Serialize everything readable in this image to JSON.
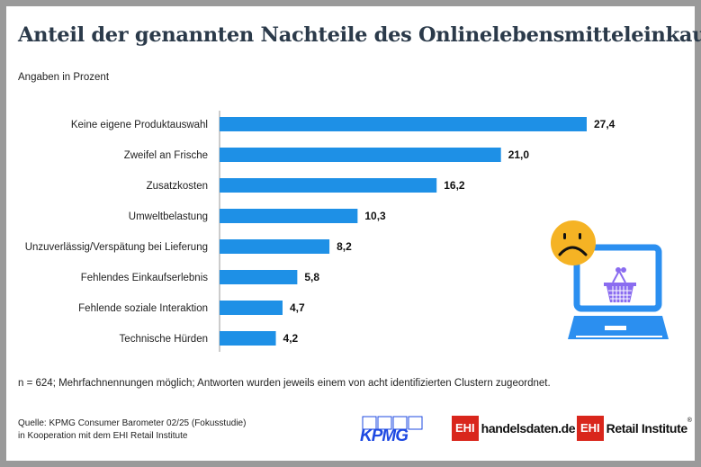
{
  "title": "Anteil der genannten Nachteile des Onlinelebensmitteleinkaufs",
  "subtitle": "Angaben in Prozent",
  "note": "n = 624; Mehrfachnennungen möglich; Antworten wurden jeweils einem von acht identifizierten Clustern zugeordnet.",
  "source": {
    "line1": "Quelle: KPMG Consumer Barometer 02/25 (Fokusstudie)",
    "line2": "in Kooperation mit dem EHI Retail Institute"
  },
  "logos": {
    "kpmg": "KPMG",
    "ehi": "EHI",
    "handelsdaten": "handelsdaten.de",
    "retail": "Retail Institute",
    "registered": "®"
  },
  "colors": {
    "bar": "#1e90e6",
    "accent": "#d9261c",
    "smiley": "#f5b324",
    "laptop": "#2b8ff0",
    "basket": "#8a6cf0"
  },
  "icons": [
    "sad-face-icon",
    "laptop-shopping-basket-icon"
  ],
  "chart_data": {
    "type": "bar",
    "orientation": "horizontal",
    "categories": [
      "Keine eigene Produktauswahl",
      "Zweifel an Frische",
      "Zusatzkosten",
      "Umweltbelastung",
      "Unzuverlässig/Verspätung bei Lieferung",
      "Fehlendes Einkaufserlebnis",
      "Fehlende soziale Interaktion",
      "Technische Hürden"
    ],
    "values": [
      27.4,
      21.0,
      16.2,
      10.3,
      8.2,
      5.8,
      4.7,
      4.2
    ],
    "value_labels": [
      "27,4",
      "21,0",
      "16,2",
      "10,3",
      "8,2",
      "5,8",
      "4,7",
      "4,2"
    ],
    "title": "Anteil der genannten Nachteile des Onlinelebensmitteleinkaufs",
    "xlabel": "",
    "ylabel": "Angaben in Prozent",
    "xlim": [
      0,
      27.4
    ],
    "grid": false
  }
}
